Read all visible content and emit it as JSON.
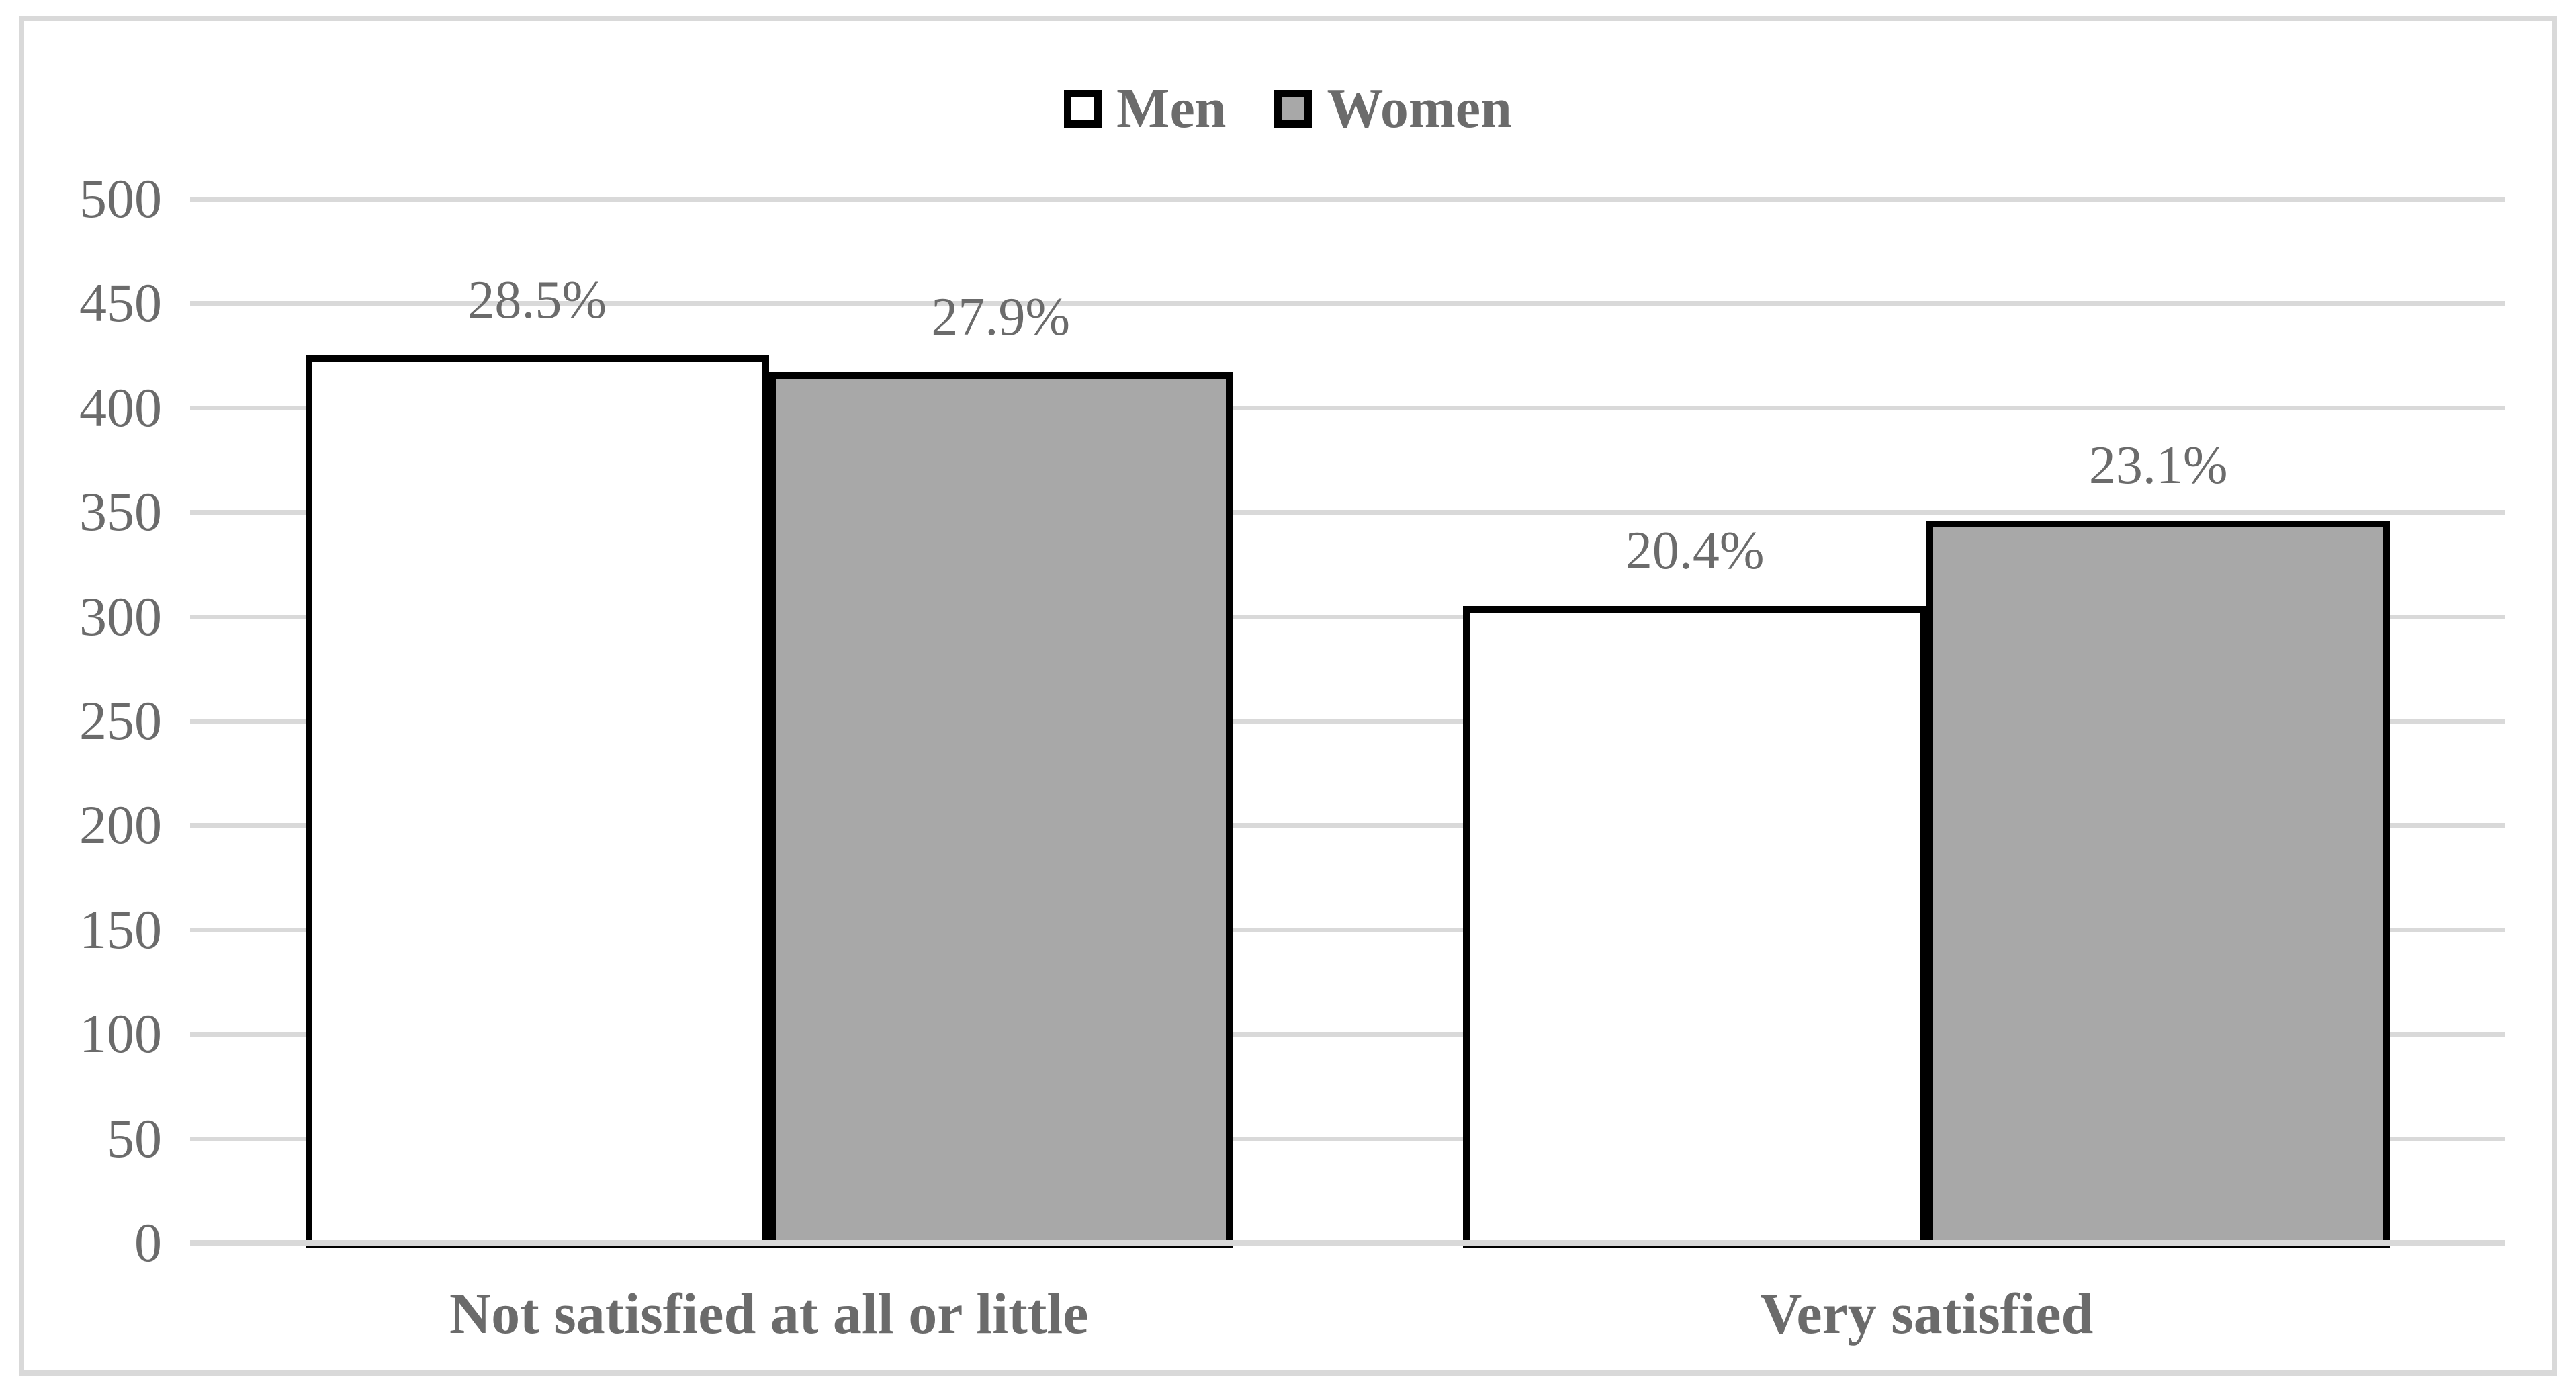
{
  "chart_data": {
    "type": "bar",
    "title": "",
    "xlabel": "",
    "ylabel": "",
    "categories": [
      "Not satisfied at all or little",
      "Very satisfied"
    ],
    "series": [
      {
        "name": "Men",
        "values": [
          425,
          305
        ],
        "data_labels": [
          "28.5%",
          "20.4%"
        ],
        "fill": "#ffffff"
      },
      {
        "name": "Women",
        "values": [
          417,
          346
        ],
        "data_labels": [
          "27.9%",
          "23.1%"
        ],
        "fill": "#a8a8a8"
      }
    ],
    "ylim": [
      0,
      500
    ],
    "ytick_interval": 50,
    "ytick_labels": [
      "500",
      "450",
      "400",
      "350",
      "300",
      "250",
      "200",
      "150",
      "100",
      "50",
      "0"
    ],
    "grid": true,
    "legend_position": "top-center",
    "colors": {
      "men_fill": "#ffffff",
      "women_fill": "#a8a8a8",
      "bar_border": "#000000",
      "gridline": "#d9d9d9",
      "frame_border": "#d9d9d9",
      "text": "#6b6b6b"
    }
  }
}
